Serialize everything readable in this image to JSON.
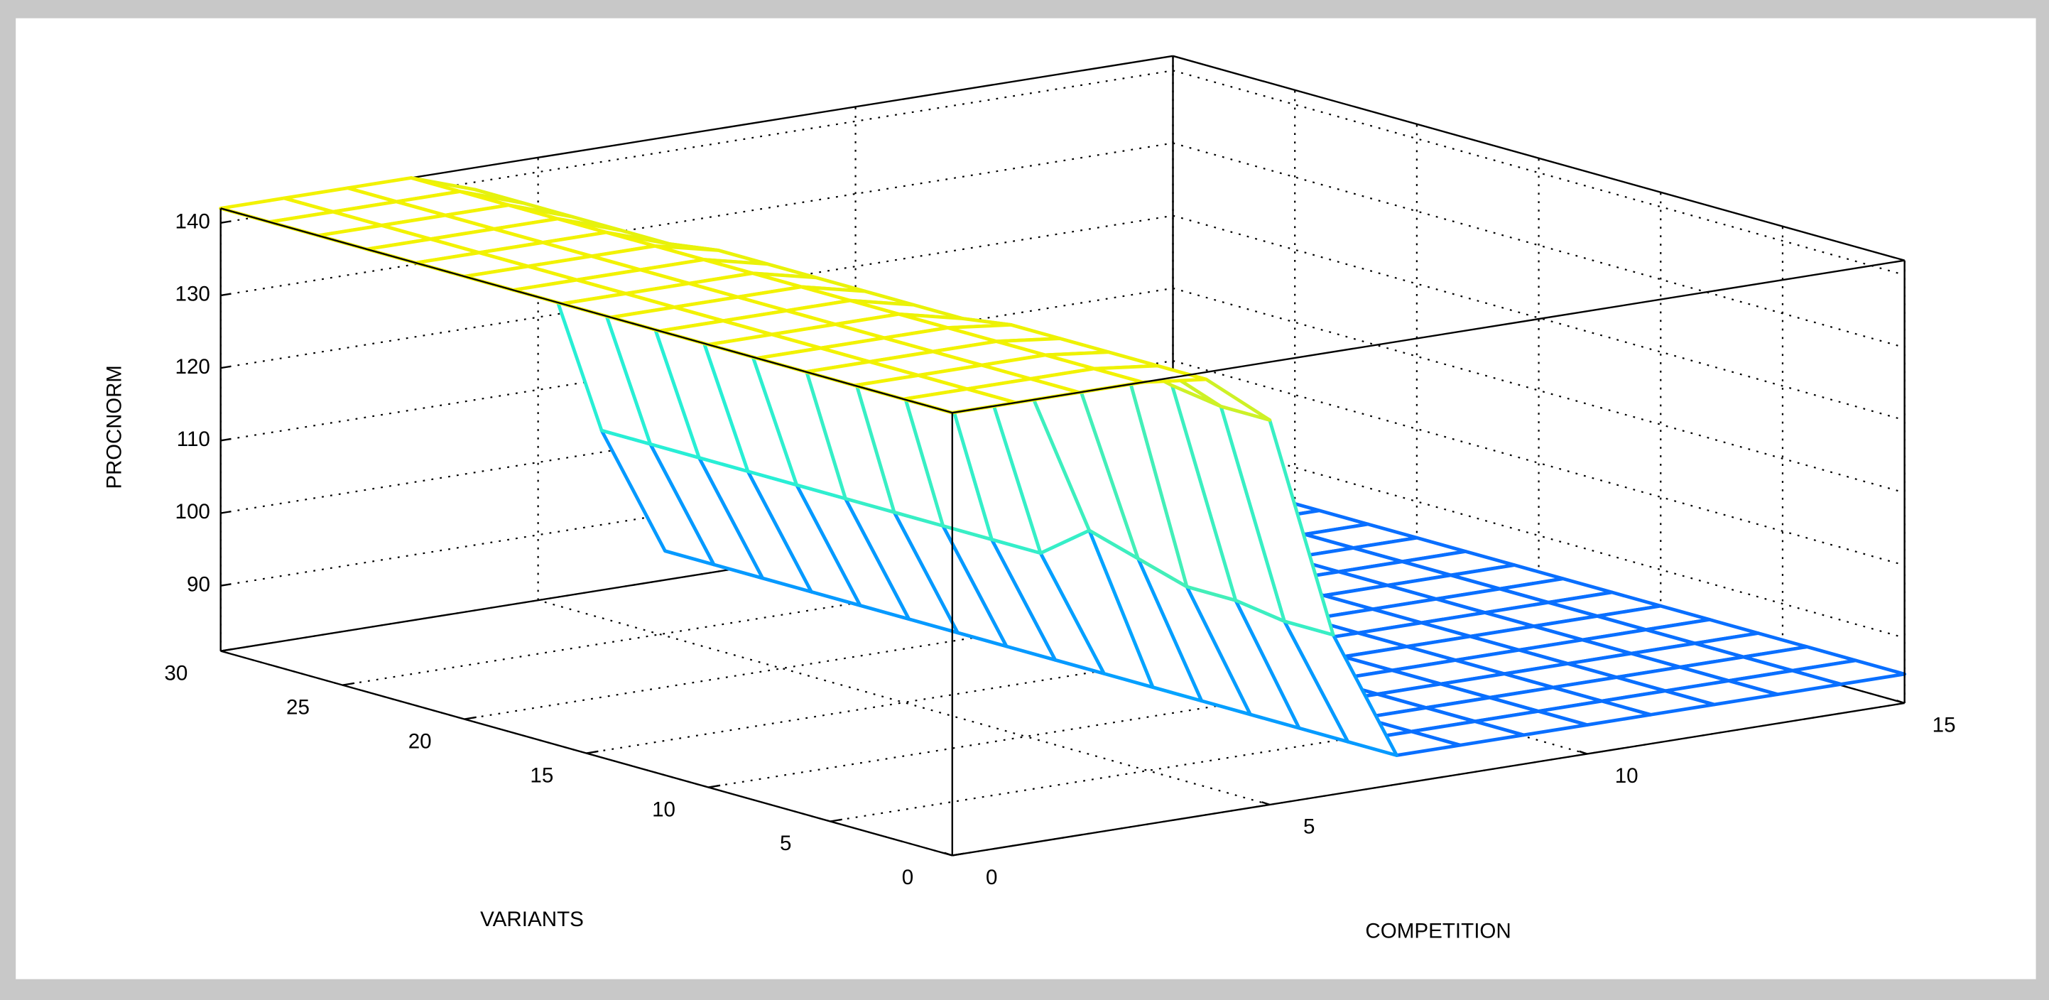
{
  "chart_data": {
    "type": "mesh",
    "xlabel": "VARIANTS",
    "ylabel": "COMPETITION",
    "zlabel": "PROCNORM",
    "x": [
      0,
      2,
      4,
      6,
      8,
      10,
      12,
      14,
      16,
      18,
      20,
      22,
      24,
      26,
      28,
      30
    ],
    "y": [
      0,
      1,
      2,
      3,
      4,
      5,
      6,
      7,
      8,
      9,
      10,
      11,
      12,
      13,
      14,
      15
    ],
    "z": [
      [
        142,
        142,
        142,
        142,
        141,
        134,
        103,
        85,
        85,
        85,
        85,
        85,
        85,
        85,
        85,
        85
      ],
      [
        142,
        142,
        142,
        142,
        141,
        134,
        103,
        85,
        85,
        85,
        85,
        85,
        85,
        85,
        85,
        85
      ],
      [
        142,
        142,
        142,
        142,
        141,
        135,
        104,
        85,
        85,
        85,
        85,
        85,
        85,
        85,
        85,
        85
      ],
      [
        142,
        142,
        142,
        142,
        141,
        137,
        104,
        85,
        85,
        85,
        85,
        85,
        85,
        85,
        85,
        85
      ],
      [
        142,
        142,
        142,
        142,
        141,
        133,
        106,
        85,
        85,
        85,
        85,
        85,
        85,
        85,
        85,
        85
      ],
      [
        142,
        142,
        142,
        142,
        140,
        130,
        108,
        85,
        85,
        85,
        85,
        85,
        85,
        85,
        85,
        85
      ],
      [
        142,
        142,
        142,
        142,
        140,
        132,
        103,
        85,
        85,
        85,
        85,
        85,
        85,
        85,
        85,
        85
      ],
      [
        142,
        142,
        142,
        142,
        140,
        134,
        103,
        85,
        85,
        85,
        85,
        85,
        85,
        85,
        85,
        85
      ],
      [
        142,
        142,
        142,
        142,
        140,
        134,
        103,
        85,
        85,
        85,
        85,
        85,
        85,
        85,
        85,
        85
      ],
      [
        142,
        142,
        142,
        142,
        140,
        134,
        103,
        85,
        85,
        85,
        85,
        85,
        85,
        85,
        85,
        85
      ],
      [
        142,
        142,
        142,
        142,
        140,
        133,
        103,
        85,
        85,
        85,
        85,
        85,
        85,
        85,
        85,
        85
      ],
      [
        142,
        142,
        142,
        142,
        139,
        130,
        103,
        85,
        85,
        85,
        85,
        85,
        85,
        85,
        85,
        85
      ],
      [
        142,
        142,
        142,
        142,
        139,
        130,
        103,
        85,
        85,
        85,
        85,
        85,
        85,
        85,
        85,
        85
      ],
      [
        142,
        142,
        142,
        142,
        139,
        130,
        103,
        85,
        85,
        85,
        85,
        85,
        85,
        85,
        85,
        85
      ],
      [
        142,
        142,
        142,
        142,
        139,
        130,
        103,
        85,
        85,
        85,
        85,
        85,
        85,
        85,
        85,
        85
      ],
      [
        142,
        142,
        142,
        142,
        139,
        130,
        103,
        85,
        85,
        85,
        85,
        85,
        85,
        85,
        85,
        85
      ]
    ],
    "xlim": [
      0,
      30
    ],
    "ylim": [
      0,
      15
    ],
    "zlim": [
      81,
      142
    ],
    "xticks": [
      0,
      5,
      10,
      15,
      20,
      25,
      30
    ],
    "yticks": [
      0,
      5,
      10,
      15
    ],
    "zticks": [
      90,
      100,
      110,
      120,
      130,
      140
    ],
    "grid": true,
    "colormap": [
      "#0a5cff",
      "#00eeff",
      "#f2f200"
    ]
  }
}
